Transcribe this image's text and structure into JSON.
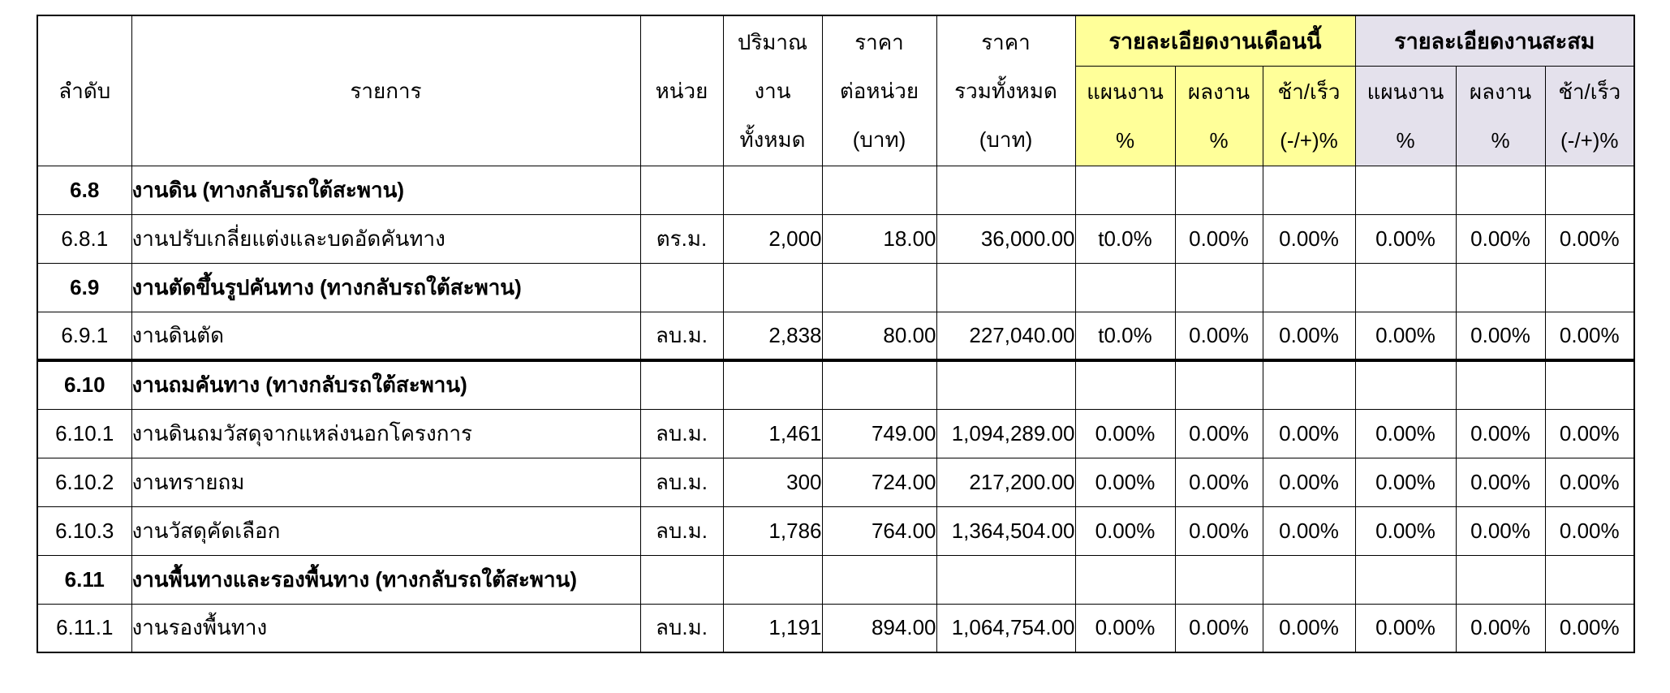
{
  "table": {
    "colors": {
      "month_group_bg": "#ffff99",
      "cum_group_bg": "#e4e1ec",
      "border": "#000000"
    },
    "header": {
      "no": "ลำดับ",
      "item": "รายการ",
      "unit": "หน่วย",
      "qty": "ปริมาณ\nงาน\nทั้งหมด",
      "unit_price": "ราคา\nต่อหน่วย\n(บาท)",
      "total_price": "ราคา\nรวมทั้งหมด\n(บาท)",
      "month_group": "รายละเอียดงานเดือนนี้",
      "cum_group": "รายละเอียดงานสะสม",
      "plan": "แผนงาน\n%",
      "result": "ผลงาน\n%",
      "delay": "ช้า/เร็ว\n(-/+)%"
    },
    "rows": [
      {
        "no": "6.8",
        "name": "งานดิน (ทางกลับรถใต้สะพาน)",
        "section": true,
        "unit": "",
        "qty": "",
        "unit_price": "",
        "total": "",
        "m_plan": "",
        "m_result": "",
        "m_delay": "",
        "c_plan": "",
        "c_result": "",
        "c_delay": ""
      },
      {
        "no": "6.8.1",
        "name": "งานปรับเกลี่ยแต่งและบดอัดคันทาง",
        "section": false,
        "unit": "ตร.ม.",
        "qty": "2,000",
        "unit_price": "18.00",
        "total": "36,000.00",
        "m_plan": "t0.0%",
        "m_result": "0.00%",
        "m_delay": "0.00%",
        "c_plan": "0.00%",
        "c_result": "0.00%",
        "c_delay": "0.00%"
      },
      {
        "no": "6.9",
        "name": "งานตัดขึ้นรูปคันทาง (ทางกลับรถใต้สะพาน)",
        "section": true,
        "unit": "",
        "qty": "",
        "unit_price": "",
        "total": "",
        "m_plan": "",
        "m_result": "",
        "m_delay": "",
        "c_plan": "",
        "c_result": "",
        "c_delay": ""
      },
      {
        "no": "6.9.1",
        "name": "งานดินตัด",
        "section": false,
        "thick_bottom": true,
        "unit": "ลบ.ม.",
        "qty": "2,838",
        "unit_price": "80.00",
        "total": "227,040.00",
        "m_plan": "t0.0%",
        "m_result": "0.00%",
        "m_delay": "0.00%",
        "c_plan": "0.00%",
        "c_result": "0.00%",
        "c_delay": "0.00%"
      },
      {
        "no": "6.10",
        "name": "งานถมคันทาง (ทางกลับรถใต้สะพาน)",
        "section": true,
        "unit": "",
        "qty": "",
        "unit_price": "",
        "total": "",
        "m_plan": "",
        "m_result": "",
        "m_delay": "",
        "c_plan": "",
        "c_result": "",
        "c_delay": ""
      },
      {
        "no": "6.10.1",
        "name": "งานดินถมวัสดุจากแหล่งนอกโครงการ",
        "section": false,
        "unit": "ลบ.ม.",
        "qty": "1,461",
        "unit_price": "749.00",
        "total": "1,094,289.00",
        "m_plan": "0.00%",
        "m_result": "0.00%",
        "m_delay": "0.00%",
        "c_plan": "0.00%",
        "c_result": "0.00%",
        "c_delay": "0.00%"
      },
      {
        "no": "6.10.2",
        "name": "งานทรายถม",
        "section": false,
        "unit": "ลบ.ม.",
        "qty": "300",
        "unit_price": "724.00",
        "total": "217,200.00",
        "m_plan": "0.00%",
        "m_result": "0.00%",
        "m_delay": "0.00%",
        "c_plan": "0.00%",
        "c_result": "0.00%",
        "c_delay": "0.00%"
      },
      {
        "no": "6.10.3",
        "name": "งานวัสดุคัดเลือก",
        "section": false,
        "unit": "ลบ.ม.",
        "qty": "1,786",
        "unit_price": "764.00",
        "total": "1,364,504.00",
        "m_plan": "0.00%",
        "m_result": "0.00%",
        "m_delay": "0.00%",
        "c_plan": "0.00%",
        "c_result": "0.00%",
        "c_delay": "0.00%"
      },
      {
        "no": "6.11",
        "name": "งานพื้นทางและรองพื้นทาง (ทางกลับรถใต้สะพาน)",
        "section": true,
        "unit": "",
        "qty": "",
        "unit_price": "",
        "total": "",
        "m_plan": "",
        "m_result": "",
        "m_delay": "",
        "c_plan": "",
        "c_result": "",
        "c_delay": ""
      },
      {
        "no": "6.11.1",
        "name": "งานรองพื้นทาง",
        "section": false,
        "unit": "ลบ.ม.",
        "qty": "1,191",
        "unit_price": "894.00",
        "total": "1,064,754.00",
        "m_plan": "0.00%",
        "m_result": "0.00%",
        "m_delay": "0.00%",
        "c_plan": "0.00%",
        "c_result": "0.00%",
        "c_delay": "0.00%"
      }
    ]
  }
}
